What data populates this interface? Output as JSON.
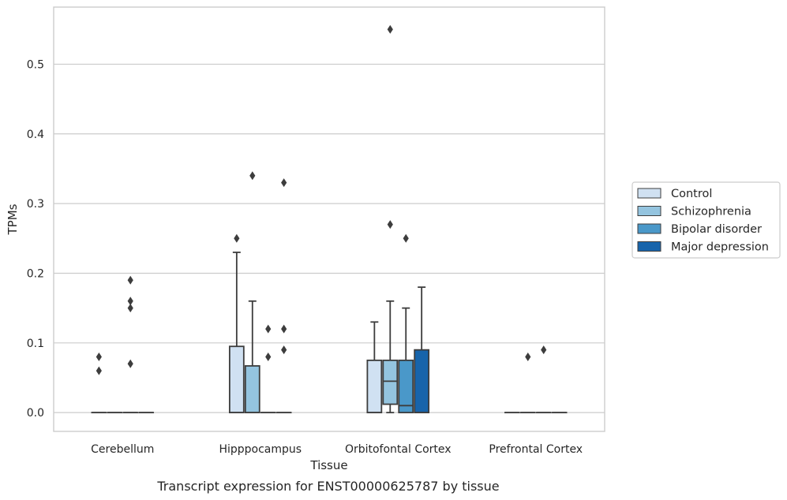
{
  "chart_data": {
    "type": "box",
    "title": "",
    "caption": "Transcript expression for ENST00000625787 by tissue",
    "xlabel": "Tissue",
    "ylabel": "TPMs",
    "ylim": [
      -0.027,
      0.582
    ],
    "yticks": [
      0.0,
      0.1,
      0.2,
      0.3,
      0.4,
      0.5
    ],
    "ytick_labels": [
      "0.0",
      "0.1",
      "0.2",
      "0.3",
      "0.4",
      "0.5"
    ],
    "grid": "horizontal",
    "legend_position": "right",
    "categories": [
      "Cerebellum",
      "Hipppocampus",
      "Orbitofontal Cortex",
      "Prefrontal Cortex"
    ],
    "series": [
      {
        "name": "Control",
        "color": "#d0e1f2",
        "boxes": [
          {
            "q1": 0,
            "median": 0,
            "q3": 0,
            "whisker_low": 0,
            "whisker_high": 0,
            "outliers": [
              0.08,
              0.06
            ]
          },
          {
            "q1": 0,
            "median": 0,
            "q3": 0.095,
            "whisker_low": 0,
            "whisker_high": 0.23,
            "outliers": [
              0.25
            ]
          },
          {
            "q1": 0,
            "median": 0,
            "q3": 0.075,
            "whisker_low": 0,
            "whisker_high": 0.13,
            "outliers": []
          },
          {
            "q1": 0,
            "median": 0,
            "q3": 0,
            "whisker_low": 0,
            "whisker_high": 0,
            "outliers": []
          }
        ]
      },
      {
        "name": "Schizophrenia",
        "color": "#94c4df",
        "boxes": [
          {
            "q1": 0,
            "median": 0,
            "q3": 0,
            "whisker_low": 0,
            "whisker_high": 0,
            "outliers": []
          },
          {
            "q1": 0,
            "median": 0,
            "q3": 0.067,
            "whisker_low": 0,
            "whisker_high": 0.16,
            "outliers": [
              0.34
            ]
          },
          {
            "q1": 0.012,
            "median": 0.045,
            "q3": 0.075,
            "whisker_low": 0,
            "whisker_high": 0.16,
            "outliers": [
              0.55,
              0.27
            ]
          },
          {
            "q1": 0,
            "median": 0,
            "q3": 0,
            "whisker_low": 0,
            "whisker_high": 0,
            "outliers": [
              0.08
            ]
          }
        ]
      },
      {
        "name": "Bipolar disorder",
        "color": "#4a98c9",
        "boxes": [
          {
            "q1": 0,
            "median": 0,
            "q3": 0,
            "whisker_low": 0,
            "whisker_high": 0,
            "outliers": [
              0.16,
              0.15,
              0.07,
              0.19
            ]
          },
          {
            "q1": 0,
            "median": 0,
            "q3": 0,
            "whisker_low": 0,
            "whisker_high": 0,
            "outliers": [
              0.12,
              0.08
            ]
          },
          {
            "q1": 0,
            "median": 0.01,
            "q3": 0.075,
            "whisker_low": 0,
            "whisker_high": 0.15,
            "outliers": [
              0.25
            ]
          },
          {
            "q1": 0,
            "median": 0,
            "q3": 0,
            "whisker_low": 0,
            "whisker_high": 0,
            "outliers": [
              0.09
            ]
          }
        ]
      },
      {
        "name": "Major depression",
        "color": "#1764ab",
        "boxes": [
          {
            "q1": 0,
            "median": 0,
            "q3": 0,
            "whisker_low": 0,
            "whisker_high": 0,
            "outliers": []
          },
          {
            "q1": 0,
            "median": 0,
            "q3": 0,
            "whisker_low": 0,
            "whisker_high": 0,
            "outliers": [
              0.33,
              0.12,
              0.09
            ]
          },
          {
            "q1": 0,
            "median": 0,
            "q3": 0.09,
            "whisker_low": 0,
            "whisker_high": 0.18,
            "outliers": []
          },
          {
            "q1": 0,
            "median": 0,
            "q3": 0,
            "whisker_low": 0,
            "whisker_high": 0,
            "outliers": []
          }
        ]
      }
    ]
  }
}
